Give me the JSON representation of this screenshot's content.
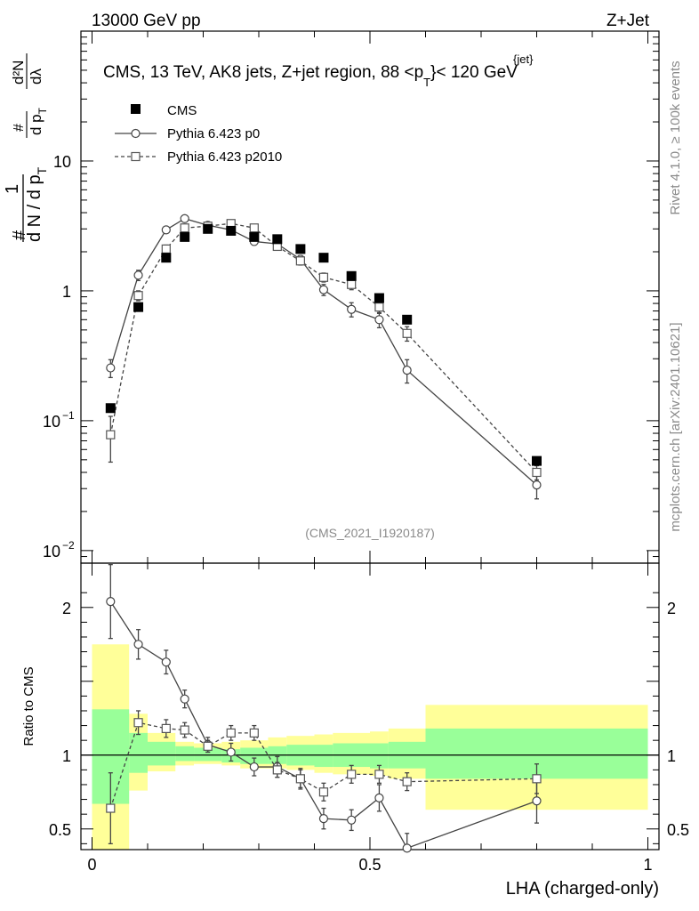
{
  "header": {
    "left": "13000 GeV pp",
    "right": "Z+Jet"
  },
  "side_text": {
    "rivet": "Rivet 4.1.0, ≥ 100k events",
    "site": "mcplots.cern.ch [arXiv:2401.10621]"
  },
  "chart_data": {
    "type": "scatter",
    "title": {
      "prefix": "CMS, 13 TeV, AK8 jets, Z+jet region, 88 <p",
      "sub": "T",
      "sup": "{jet}",
      "suffix": "}< 120 GeV"
    },
    "analysis_id": "(CMS_2021_I1920187)",
    "xlabel": "LHA (charged-only)",
    "ylabel_main": {
      "hash1": "#",
      "one": "1",
      "denom": "d N / d p",
      "denom_sub": "T",
      "hash2": "#",
      "num2": "d p",
      "num2_sub": "T",
      "d2N": "d²N",
      "dlambda": "dλ"
    },
    "ylabel_ratio": "Ratio to CMS",
    "xlim": [
      -0.02,
      1.02
    ],
    "main_ylim": [
      0.008,
      100
    ],
    "main_yscale": "log",
    "ratio_ylim": [
      0.36,
      2.3
    ],
    "x_ticks": [
      {
        "v": 0,
        "label": "0"
      },
      {
        "v": 0.5,
        "label": "0.5"
      },
      {
        "v": 1,
        "label": "1"
      }
    ],
    "main_y_ticks": [
      {
        "v": 0.01,
        "base": "10",
        "exp": "−2"
      },
      {
        "v": 0.1,
        "base": "10",
        "exp": "−1"
      },
      {
        "v": 1,
        "base": "1",
        "exp": ""
      },
      {
        "v": 10,
        "base": "10",
        "exp": ""
      }
    ],
    "ratio_y_ticks": [
      {
        "v": 0.5,
        "label": "0.5"
      },
      {
        "v": 1,
        "label": "1"
      },
      {
        "v": 2,
        "label": "2"
      }
    ],
    "legend": [
      {
        "key": "cms",
        "label": "CMS"
      },
      {
        "key": "p0",
        "label": "Pythia 6.423 p0"
      },
      {
        "key": "p2010",
        "label": "Pythia 6.423 p2010"
      }
    ],
    "cms": {
      "name": "CMS",
      "x": [
        0.0333,
        0.0833,
        0.1333,
        0.1667,
        0.2083,
        0.25,
        0.2917,
        0.3333,
        0.375,
        0.4167,
        0.4667,
        0.5167,
        0.5667,
        0.8
      ],
      "y": [
        0.125,
        0.75,
        1.8,
        2.6,
        3.0,
        2.9,
        2.6,
        2.5,
        2.1,
        1.8,
        1.3,
        0.88,
        0.6,
        0.049
      ]
    },
    "band_edges": [
      0.0,
      0.0667,
      0.1,
      0.15,
      0.1833,
      0.2333,
      0.2667,
      0.3167,
      0.35,
      0.4,
      0.4333,
      0.5,
      0.5333,
      0.6,
      1.0
    ],
    "band_inner": [
      [
        0.67,
        1.31
      ],
      [
        0.88,
        1.15
      ],
      [
        0.93,
        1.09
      ],
      [
        0.96,
        1.06
      ],
      [
        0.96,
        1.05
      ],
      [
        0.95,
        1.04
      ],
      [
        0.94,
        1.05
      ],
      [
        0.94,
        1.06
      ],
      [
        0.93,
        1.07
      ],
      [
        0.92,
        1.07
      ],
      [
        0.92,
        1.08
      ],
      [
        0.91,
        1.08
      ],
      [
        0.91,
        1.09
      ],
      [
        0.84,
        1.18
      ]
    ],
    "band_outer": [
      [
        0.36,
        1.75
      ],
      [
        0.76,
        1.28
      ],
      [
        0.89,
        1.15
      ],
      [
        0.93,
        1.09
      ],
      [
        0.94,
        1.08
      ],
      [
        0.93,
        1.09
      ],
      [
        0.91,
        1.1
      ],
      [
        0.91,
        1.12
      ],
      [
        0.9,
        1.13
      ],
      [
        0.88,
        1.14
      ],
      [
        0.87,
        1.15
      ],
      [
        0.86,
        1.16
      ],
      [
        0.84,
        1.18
      ],
      [
        0.63,
        1.34
      ]
    ],
    "series": [
      {
        "name": "Pythia 6.423 p0",
        "key": "p0",
        "marker": "circle",
        "line": "solid",
        "x": [
          0.0333,
          0.0833,
          0.1333,
          0.1667,
          0.2083,
          0.25,
          0.2917,
          0.3333,
          0.375,
          0.4167,
          0.4667,
          0.5167,
          0.5667,
          0.8
        ],
        "y": [
          0.255,
          1.32,
          2.95,
          3.6,
          3.2,
          2.95,
          2.4,
          2.3,
          1.75,
          1.02,
          0.72,
          0.6,
          0.245,
          0.032
        ],
        "y_err": [
          0.04,
          0.12,
          0.1,
          0.15,
          0.1,
          0.12,
          0.15,
          0.12,
          0.12,
          0.1,
          0.09,
          0.08,
          0.05,
          0.007
        ],
        "ratio": [
          2.04,
          1.75,
          1.63,
          1.38,
          1.07,
          1.02,
          0.92,
          0.92,
          0.84,
          0.57,
          0.56,
          0.71,
          0.37,
          0.69
        ],
        "ratio_err": [
          0.25,
          0.1,
          0.08,
          0.06,
          0.05,
          0.06,
          0.06,
          0.07,
          0.07,
          0.07,
          0.07,
          0.09,
          0.1,
          0.15
        ]
      },
      {
        "name": "Pythia 6.423 p2010",
        "key": "p2010",
        "marker": "square",
        "line": "dashed",
        "x": [
          0.0333,
          0.0833,
          0.1333,
          0.1667,
          0.2083,
          0.25,
          0.2917,
          0.3333,
          0.375,
          0.4167,
          0.4667,
          0.5167,
          0.5667,
          0.8
        ],
        "y": [
          0.078,
          0.92,
          2.1,
          3.05,
          3.15,
          3.3,
          3.05,
          2.2,
          1.7,
          1.27,
          1.12,
          0.75,
          0.47,
          0.04
        ],
        "y_err": [
          0.03,
          0.08,
          0.15,
          0.15,
          0.12,
          0.15,
          0.15,
          0.12,
          0.12,
          0.1,
          0.1,
          0.08,
          0.06,
          0.005
        ],
        "ratio": [
          0.64,
          1.22,
          1.18,
          1.17,
          1.06,
          1.15,
          1.15,
          0.9,
          0.84,
          0.75,
          0.87,
          0.87,
          0.82,
          0.84
        ],
        "ratio_err": [
          0.24,
          0.08,
          0.06,
          0.05,
          0.04,
          0.05,
          0.05,
          0.05,
          0.06,
          0.06,
          0.06,
          0.06,
          0.06,
          0.1
        ]
      }
    ]
  }
}
